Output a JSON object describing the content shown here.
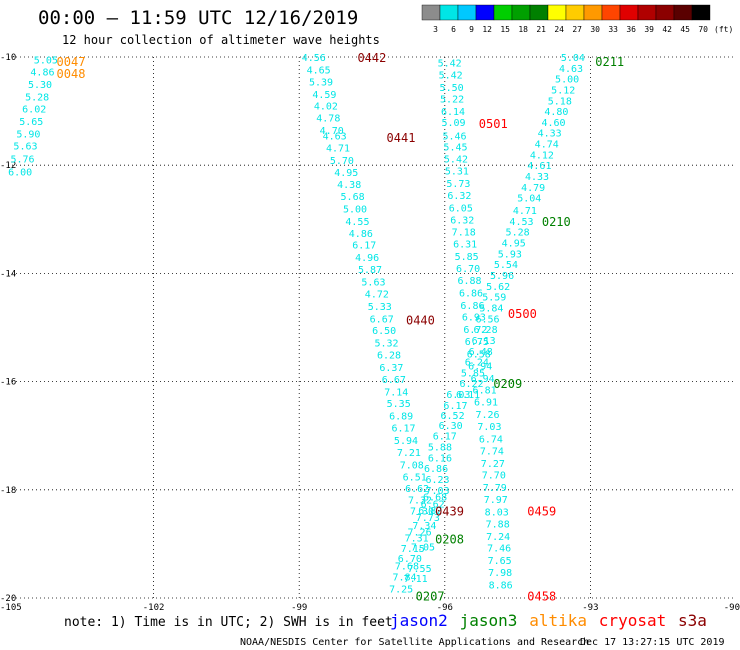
{
  "title": "00:00 – 11:59 UTC 12/16/2019",
  "subtitle": "12 hour collection of altimeter wave heights",
  "colorbar": {
    "labels": [
      "3",
      "6",
      "9",
      "12",
      "15",
      "18",
      "21",
      "24",
      "27",
      "30",
      "33",
      "36",
      "39",
      "42",
      "45",
      "70"
    ],
    "unit": "(ft)",
    "colors": [
      "#8c8c8c",
      "#00e6e6",
      "#00c8ff",
      "#0000ff",
      "#00ce00",
      "#00a000",
      "#008000",
      "#ffff00",
      "#ffcc00",
      "#ff9900",
      "#ff4500",
      "#e00000",
      "#b00000",
      "#8b0000",
      "#5a0000",
      "#000000"
    ]
  },
  "chart_data": {
    "type": "scatter",
    "xlim": [
      -105,
      -90
    ],
    "ylim": [
      -20,
      -10
    ],
    "x_ticks": [
      "-105",
      "-102",
      "-99",
      "-96",
      "-93",
      "-90"
    ],
    "y_ticks": [
      "-10",
      "-12",
      "-14",
      "-16",
      "-18",
      "-20"
    ],
    "satellite_colors": {
      "jason2": "#0000ff",
      "jason3": "#008000",
      "altika": "#ff8c00",
      "cryosat": "#ff0000",
      "s3a": "#8b0000"
    },
    "tracks": [
      {
        "name": "track_0047_0048",
        "color": "#00e6e6",
        "points": [
          [
            -104.22,
            -10.05,
            "5.05"
          ],
          [
            -104.29,
            -10.27,
            "4.86"
          ],
          [
            -104.34,
            -10.5,
            "5.30"
          ],
          [
            -104.4,
            -10.73,
            "5.28"
          ],
          [
            -104.46,
            -10.95,
            "6.02"
          ],
          [
            -104.52,
            -11.18,
            "5.65"
          ],
          [
            -104.58,
            -11.41,
            "5.90"
          ],
          [
            -104.64,
            -11.64,
            "5.63"
          ],
          [
            -104.7,
            -11.88,
            "5.76"
          ],
          [
            -104.75,
            -12.12,
            "6.00"
          ]
        ]
      },
      {
        "name": "track_0442_0441_0440_0439",
        "color": "#00e6e6",
        "points": [
          [
            -98.7,
            -10.0,
            "4.56"
          ],
          [
            -98.6,
            -10.23,
            "4.65"
          ],
          [
            -98.55,
            -10.45,
            "5.39"
          ],
          [
            -98.48,
            -10.68,
            "4.59"
          ],
          [
            -98.45,
            -10.9,
            "4.02"
          ],
          [
            -98.4,
            -11.12,
            "4.78"
          ],
          [
            -98.33,
            -11.35,
            "4.70"
          ],
          [
            -98.27,
            -11.45,
            "4.63"
          ],
          [
            -98.2,
            -11.67,
            "4.71"
          ],
          [
            -98.12,
            -11.9,
            "5.70"
          ],
          [
            -98.03,
            -12.13,
            "4.95"
          ],
          [
            -97.97,
            -12.35,
            "4.38"
          ],
          [
            -97.9,
            -12.57,
            "5.68"
          ],
          [
            -97.85,
            -12.8,
            "5.00"
          ],
          [
            -97.8,
            -13.03,
            "4.55"
          ],
          [
            -97.73,
            -13.25,
            "4.86"
          ],
          [
            -97.66,
            -13.47,
            "6.17"
          ],
          [
            -97.6,
            -13.7,
            "4.96"
          ],
          [
            -97.54,
            -13.92,
            "5.87"
          ],
          [
            -97.47,
            -14.15,
            "5.63"
          ],
          [
            -97.4,
            -14.37,
            "4.72"
          ],
          [
            -97.34,
            -14.6,
            "5.33"
          ],
          [
            -97.3,
            -14.83,
            "6.67"
          ],
          [
            -97.25,
            -15.05,
            "6.50"
          ],
          [
            -97.2,
            -15.28,
            "5.32"
          ],
          [
            -97.15,
            -15.5,
            "6.28"
          ],
          [
            -97.1,
            -15.73,
            "6.37"
          ],
          [
            -97.05,
            -15.95,
            "6.67"
          ],
          [
            -97.0,
            -16.18,
            "7.14"
          ],
          [
            -96.95,
            -16.4,
            "5.35"
          ],
          [
            -96.9,
            -16.63,
            "6.89"
          ],
          [
            -96.85,
            -16.85,
            "6.17"
          ],
          [
            -96.8,
            -17.08,
            "5.94"
          ],
          [
            -96.74,
            -17.3,
            "7.21"
          ],
          [
            -96.68,
            -17.53,
            "7.08"
          ],
          [
            -96.62,
            -17.75,
            "6.51"
          ],
          [
            -96.57,
            -17.97,
            "6.62"
          ],
          [
            -96.51,
            -18.18,
            "7.32"
          ],
          [
            -96.47,
            -18.38,
            "7.30"
          ]
        ]
      },
      {
        "name": "track_0208_0207",
        "color": "#00e6e6",
        "points": [
          [
            -96.15,
            -18.0,
            "7.03"
          ],
          [
            -96.2,
            -18.12,
            "6.68"
          ],
          [
            -96.25,
            -18.25,
            "6.62"
          ],
          [
            -96.3,
            -18.37,
            "6.82"
          ],
          [
            -96.35,
            -18.5,
            "7.73"
          ],
          [
            -96.42,
            -18.65,
            "7.34"
          ],
          [
            -96.52,
            -18.77,
            "7.26"
          ],
          [
            -96.58,
            -18.88,
            "7.31"
          ],
          [
            -96.45,
            -19.05,
            "7.05"
          ],
          [
            -96.66,
            -19.08,
            "7.15"
          ],
          [
            -96.72,
            -19.26,
            "6.70"
          ],
          [
            -96.78,
            -19.4,
            "7.68"
          ],
          [
            -96.52,
            -19.45,
            "7.55"
          ],
          [
            -96.83,
            -19.6,
            "7.84"
          ],
          [
            -96.6,
            -19.63,
            "7.11"
          ],
          [
            -96.9,
            -19.82,
            "7.25"
          ]
        ]
      },
      {
        "name": "track_0211_0210_0209",
        "color": "#00e6e6",
        "points": [
          [
            -93.36,
            -10.0,
            "5.04"
          ],
          [
            -93.4,
            -10.2,
            "4.63"
          ],
          [
            -93.48,
            -10.4,
            "5.00"
          ],
          [
            -93.56,
            -10.6,
            "5.12"
          ],
          [
            -93.63,
            -10.8,
            "5.18"
          ],
          [
            -93.7,
            -11.0,
            "4.80"
          ],
          [
            -93.76,
            -11.2,
            "4.60"
          ],
          [
            -93.84,
            -11.4,
            "4.33"
          ],
          [
            -93.9,
            -11.6,
            "4.74"
          ],
          [
            -94.0,
            -11.8,
            "4.12"
          ],
          [
            -94.05,
            -12.0,
            "4.61"
          ],
          [
            -94.1,
            -12.2,
            "4.33"
          ],
          [
            -94.18,
            -12.4,
            "4.79"
          ],
          [
            -94.26,
            -12.6,
            "5.04"
          ],
          [
            -94.35,
            -12.83,
            "4.71"
          ],
          [
            -94.42,
            -13.03,
            "4.53"
          ],
          [
            -94.5,
            -13.23,
            "5.28"
          ],
          [
            -94.58,
            -13.43,
            "4.95"
          ],
          [
            -94.66,
            -13.63,
            "5.93"
          ],
          [
            -94.74,
            -13.83,
            "5.54"
          ],
          [
            -94.82,
            -14.03,
            "5.96"
          ],
          [
            -94.9,
            -14.23,
            "5.62"
          ],
          [
            -94.98,
            -14.43,
            "5.59"
          ],
          [
            -95.04,
            -14.63,
            "5.84"
          ],
          [
            -95.12,
            -14.83,
            "6.56"
          ],
          [
            -95.16,
            -15.03,
            "6.28"
          ],
          [
            -95.2,
            -15.23,
            "6.13"
          ],
          [
            -95.26,
            -15.43,
            "6.48"
          ],
          [
            -95.34,
            -15.63,
            "6.24"
          ],
          [
            -95.42,
            -15.83,
            "5.85"
          ],
          [
            -95.45,
            -16.03,
            "6.22"
          ],
          [
            -95.52,
            -16.23,
            "6.11"
          ]
        ]
      },
      {
        "name": "track_0501_0500_0459_0458",
        "color": "#00e6e6",
        "points": [
          [
            -95.9,
            -10.1,
            "5.42"
          ],
          [
            -95.88,
            -10.32,
            "5.42"
          ],
          [
            -95.86,
            -10.55,
            "5.50"
          ],
          [
            -95.85,
            -10.77,
            "5.22"
          ],
          [
            -95.83,
            -11.0,
            "6.14"
          ],
          [
            -95.82,
            -11.2,
            "5.09"
          ],
          [
            -95.8,
            -11.45,
            "5.46"
          ],
          [
            -95.78,
            -11.65,
            "5.45"
          ],
          [
            -95.77,
            -11.88,
            "5.42"
          ],
          [
            -95.75,
            -12.1,
            "5.31"
          ],
          [
            -95.72,
            -12.33,
            "5.73"
          ],
          [
            -95.7,
            -12.55,
            "6.32"
          ],
          [
            -95.67,
            -12.78,
            "6.05"
          ],
          [
            -95.64,
            -13.0,
            "6.32"
          ],
          [
            -95.61,
            -13.23,
            "7.18"
          ],
          [
            -95.58,
            -13.45,
            "6.31"
          ],
          [
            -95.55,
            -13.68,
            "5.85"
          ],
          [
            -95.52,
            -13.9,
            "6.70"
          ],
          [
            -95.49,
            -14.12,
            "6.88"
          ],
          [
            -95.46,
            -14.35,
            "6.86"
          ],
          [
            -95.43,
            -14.58,
            "6.86"
          ],
          [
            -95.4,
            -14.8,
            "6.93"
          ],
          [
            -95.37,
            -15.03,
            "6.72"
          ],
          [
            -95.34,
            -15.25,
            "6.75"
          ],
          [
            -95.3,
            -15.48,
            "6.58"
          ],
          [
            -95.27,
            -15.7,
            "6.94"
          ],
          [
            -95.22,
            -15.93,
            "6.94"
          ],
          [
            -95.18,
            -16.15,
            "6.81"
          ],
          [
            -95.15,
            -16.37,
            "6.91"
          ],
          [
            -95.12,
            -16.6,
            "7.26"
          ],
          [
            -95.08,
            -16.82,
            "7.03"
          ],
          [
            -95.05,
            -17.05,
            "6.74"
          ],
          [
            -95.03,
            -17.27,
            "7.74"
          ],
          [
            -95.01,
            -17.5,
            "7.27"
          ],
          [
            -94.99,
            -17.72,
            "7.70"
          ],
          [
            -94.97,
            -17.95,
            "7.79"
          ],
          [
            -94.95,
            -18.17,
            "7.97"
          ],
          [
            -94.93,
            -18.4,
            "8.03"
          ],
          [
            -94.91,
            -18.62,
            "7.88"
          ],
          [
            -94.9,
            -18.85,
            "7.24"
          ],
          [
            -94.88,
            -19.07,
            "7.46"
          ],
          [
            -94.87,
            -19.3,
            "7.65"
          ],
          [
            -94.86,
            -19.52,
            "7.98"
          ],
          [
            -94.85,
            -19.75,
            "8.86"
          ]
        ]
      },
      {
        "name": "track_mid_crossing",
        "color": "#00e6e6",
        "points": [
          [
            -95.72,
            -16.23,
            "6.03"
          ],
          [
            -95.78,
            -16.43,
            "6.17"
          ],
          [
            -95.84,
            -16.62,
            "6.52"
          ],
          [
            -95.88,
            -16.8,
            "6.30"
          ],
          [
            -96.0,
            -17.0,
            "6.17"
          ],
          [
            -96.1,
            -17.2,
            "5.88"
          ],
          [
            -96.1,
            -17.4,
            "6.16"
          ],
          [
            -96.18,
            -17.6,
            "6.86"
          ],
          [
            -96.15,
            -17.8,
            "6.23"
          ]
        ]
      }
    ],
    "time_labels": [
      {
        "text": "0047",
        "x": -104.0,
        "y": -10.07,
        "color": "#ff8c00"
      },
      {
        "text": "0048",
        "x": -104.0,
        "y": -10.3,
        "color": "#ff8c00"
      },
      {
        "text": "0442",
        "x": -97.8,
        "y": -10.0,
        "color": "#8b0000"
      },
      {
        "text": "0441",
        "x": -97.2,
        "y": -11.48,
        "color": "#8b0000"
      },
      {
        "text": "0440",
        "x": -96.8,
        "y": -14.85,
        "color": "#8b0000"
      },
      {
        "text": "0439",
        "x": -96.2,
        "y": -18.38,
        "color": "#8b0000"
      },
      {
        "text": "0501",
        "x": -95.3,
        "y": -11.22,
        "color": "#ff0000"
      },
      {
        "text": "0500",
        "x": -94.7,
        "y": -14.73,
        "color": "#ff0000"
      },
      {
        "text": "0459",
        "x": -94.3,
        "y": -18.38,
        "color": "#ff0000"
      },
      {
        "text": "0458",
        "x": -94.3,
        "y": -19.95,
        "color": "#ff0000"
      },
      {
        "text": "0211",
        "x": -92.9,
        "y": -10.07,
        "color": "#008000"
      },
      {
        "text": "0210",
        "x": -94.0,
        "y": -13.03,
        "color": "#008000"
      },
      {
        "text": "0209",
        "x": -95.0,
        "y": -16.03,
        "color": "#008000"
      },
      {
        "text": "0208",
        "x": -96.2,
        "y": -18.9,
        "color": "#008000"
      },
      {
        "text": "0207",
        "x": -96.6,
        "y": -19.95,
        "color": "#008000"
      }
    ]
  },
  "note": "note: 1) Time is in UTC; 2) SWH is in feet",
  "legend": [
    {
      "label": "jason2",
      "color": "#0000ff"
    },
    {
      "label": "jason3",
      "color": "#008000"
    },
    {
      "label": "altika",
      "color": "#ff8c00"
    },
    {
      "label": "cryosat",
      "color": "#ff0000"
    },
    {
      "label": "s3a",
      "color": "#8b0000"
    }
  ],
  "footer": {
    "credit": "NOAA/NESDIS Center for Satellite Applications and Research",
    "timestamp": "Dec 17 13:27:15 UTC 2019"
  }
}
